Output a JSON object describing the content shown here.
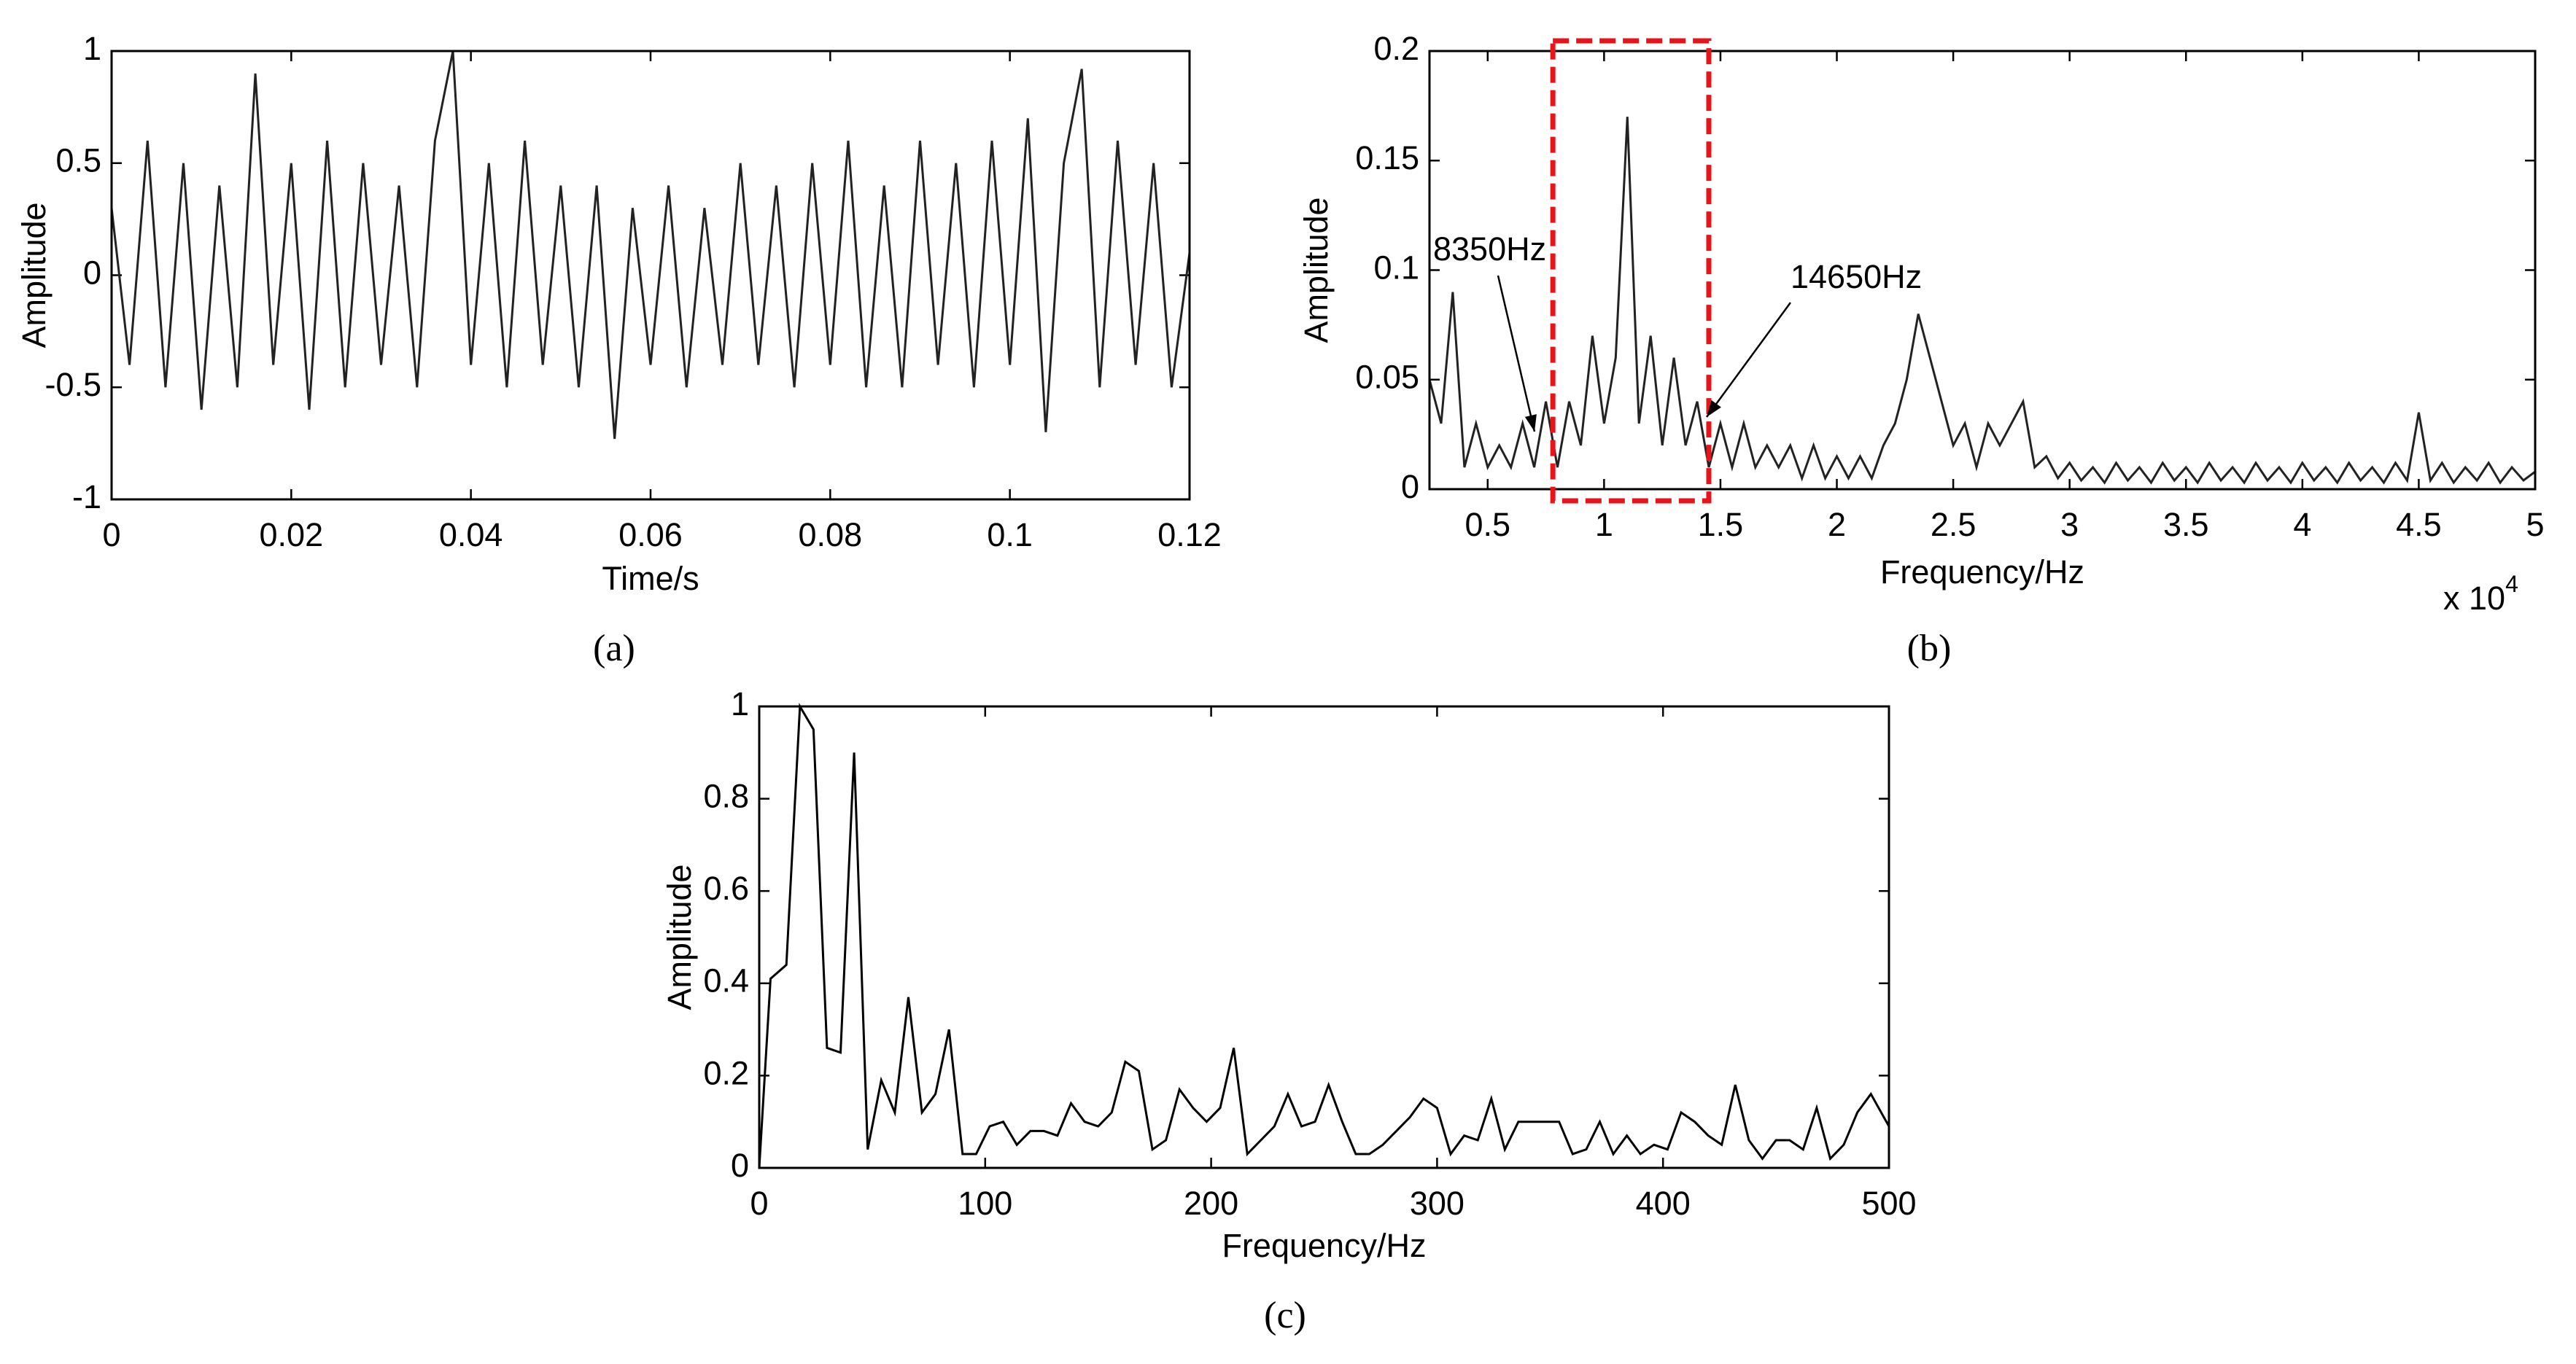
{
  "chart_data": [
    {
      "type": "line",
      "panel_label": "(a)",
      "xlabel": "Time/s",
      "ylabel": "Amplitude",
      "xlim": [
        0,
        0.12
      ],
      "xticks": [
        0,
        0.02,
        0.04,
        0.06,
        0.08,
        0.1,
        0.12
      ],
      "ylim": [
        -1,
        1
      ],
      "yticks": [
        -1,
        -0.5,
        0,
        0.5,
        1
      ],
      "grid": false,
      "x": [
        0,
        0.002,
        0.004,
        0.006,
        0.008,
        0.01,
        0.012,
        0.014,
        0.016,
        0.018,
        0.02,
        0.022,
        0.024,
        0.026,
        0.028,
        0.03,
        0.032,
        0.034,
        0.036,
        0.038,
        0.04,
        0.042,
        0.044,
        0.046,
        0.048,
        0.05,
        0.052,
        0.054,
        0.056,
        0.058,
        0.06,
        0.062,
        0.064,
        0.066,
        0.068,
        0.07,
        0.072,
        0.074,
        0.076,
        0.078,
        0.08,
        0.082,
        0.084,
        0.086,
        0.088,
        0.09,
        0.092,
        0.094,
        0.096,
        0.098,
        0.1,
        0.102,
        0.104,
        0.106,
        0.108,
        0.11,
        0.112,
        0.114,
        0.116,
        0.118,
        0.12
      ],
      "series": [
        {
          "color": "#222222",
          "values": [
            0.3,
            -0.4,
            0.6,
            -0.5,
            0.5,
            -0.6,
            0.4,
            -0.5,
            0.9,
            -0.4,
            0.5,
            -0.6,
            0.6,
            -0.5,
            0.5,
            -0.4,
            0.4,
            -0.5,
            0.6,
            1.0,
            -0.4,
            0.5,
            -0.5,
            0.6,
            -0.4,
            0.4,
            -0.5,
            0.4,
            -0.73,
            0.3,
            -0.4,
            0.4,
            -0.5,
            0.3,
            -0.4,
            0.5,
            -0.4,
            0.4,
            -0.5,
            0.5,
            -0.4,
            0.6,
            -0.5,
            0.4,
            -0.5,
            0.6,
            -0.4,
            0.5,
            -0.5,
            0.6,
            -0.4,
            0.7,
            -0.7,
            0.5,
            0.92,
            -0.5,
            0.6,
            -0.4,
            0.5,
            -0.5,
            0.1
          ]
        }
      ]
    },
    {
      "type": "line",
      "panel_label": "(b)",
      "xlabel": "Frequency/Hz",
      "ylabel": "Amplitude",
      "x_multiplier": "x 10",
      "x_exponent": "4",
      "xlim": [
        2500,
        50000
      ],
      "xticks": [
        {
          "value": 5000,
          "label": "0.5"
        },
        {
          "value": 10000,
          "label": "1"
        },
        {
          "value": 15000,
          "label": "1.5"
        },
        {
          "value": 20000,
          "label": "2"
        },
        {
          "value": 25000,
          "label": "2.5"
        },
        {
          "value": 30000,
          "label": "3"
        },
        {
          "value": 35000,
          "label": "3.5"
        },
        {
          "value": 40000,
          "label": "4"
        },
        {
          "value": 45000,
          "label": "4.5"
        },
        {
          "value": 50000,
          "label": "5"
        }
      ],
      "ylim": [
        0,
        0.2
      ],
      "yticks": [
        0,
        0.05,
        0.1,
        0.15,
        0.2
      ],
      "grid": false,
      "highlight": {
        "x": [
          7800,
          14500
        ],
        "color": "#e8141c"
      },
      "annotations": [
        "8350Hz",
        "14650Hz"
      ],
      "x": [
        2500,
        3000,
        3500,
        4000,
        4500,
        5000,
        5500,
        6000,
        6500,
        7000,
        7500,
        8000,
        8500,
        9000,
        9500,
        10000,
        10500,
        11000,
        11500,
        12000,
        12500,
        13000,
        13500,
        14000,
        14500,
        15000,
        15500,
        16000,
        16500,
        17000,
        17500,
        18000,
        18500,
        19000,
        19500,
        20000,
        20500,
        21000,
        21500,
        22000,
        22500,
        23000,
        23500,
        24000,
        24500,
        25000,
        25500,
        26000,
        26500,
        27000,
        27500,
        28000,
        28500,
        29000,
        29500,
        30000,
        30500,
        31000,
        31500,
        32000,
        32500,
        33000,
        33500,
        34000,
        34500,
        35000,
        35500,
        36000,
        36500,
        37000,
        37500,
        38000,
        38500,
        39000,
        39500,
        40000,
        40500,
        41000,
        41500,
        42000,
        42500,
        43000,
        43500,
        44000,
        44500,
        45000,
        45500,
        46000,
        46500,
        47000,
        47500,
        48000,
        48500,
        49000,
        49500,
        50000
      ],
      "series": [
        {
          "color": "#222222",
          "values": [
            0.05,
            0.03,
            0.09,
            0.01,
            0.03,
            0.01,
            0.02,
            0.01,
            0.03,
            0.01,
            0.04,
            0.01,
            0.04,
            0.02,
            0.07,
            0.03,
            0.06,
            0.17,
            0.03,
            0.07,
            0.02,
            0.06,
            0.02,
            0.04,
            0.01,
            0.03,
            0.01,
            0.03,
            0.01,
            0.02,
            0.01,
            0.02,
            0.005,
            0.02,
            0.005,
            0.015,
            0.005,
            0.015,
            0.005,
            0.02,
            0.03,
            0.05,
            0.08,
            0.06,
            0.04,
            0.02,
            0.03,
            0.01,
            0.03,
            0.02,
            0.03,
            0.04,
            0.01,
            0.015,
            0.005,
            0.012,
            0.004,
            0.01,
            0.003,
            0.012,
            0.004,
            0.01,
            0.003,
            0.012,
            0.004,
            0.01,
            0.003,
            0.012,
            0.004,
            0.01,
            0.003,
            0.012,
            0.004,
            0.01,
            0.003,
            0.012,
            0.004,
            0.01,
            0.003,
            0.012,
            0.004,
            0.01,
            0.003,
            0.012,
            0.004,
            0.035,
            0.004,
            0.012,
            0.003,
            0.01,
            0.004,
            0.012,
            0.003,
            0.01,
            0.004,
            0.008
          ]
        }
      ]
    },
    {
      "type": "line",
      "panel_label": "(c)",
      "xlabel": "Frequency/Hz",
      "ylabel": "Amplitude",
      "xlim": [
        0,
        500
      ],
      "xticks": [
        0,
        100,
        200,
        300,
        400,
        500
      ],
      "ylim": [
        0,
        1
      ],
      "yticks": [
        0,
        0.2,
        0.4,
        0.6,
        0.8,
        1
      ],
      "grid": false,
      "x": [
        0,
        5,
        12,
        18,
        24,
        30,
        36,
        42,
        48,
        54,
        60,
        66,
        72,
        78,
        84,
        90,
        96,
        102,
        108,
        114,
        120,
        126,
        132,
        138,
        144,
        150,
        156,
        162,
        168,
        174,
        180,
        186,
        192,
        198,
        204,
        210,
        216,
        222,
        228,
        234,
        240,
        246,
        252,
        258,
        264,
        270,
        276,
        282,
        288,
        294,
        300,
        306,
        312,
        318,
        324,
        330,
        336,
        342,
        348,
        354,
        360,
        366,
        372,
        378,
        384,
        390,
        396,
        402,
        408,
        414,
        420,
        426,
        432,
        438,
        444,
        450,
        456,
        462,
        468,
        474,
        480,
        486,
        492,
        500
      ],
      "series": [
        {
          "color": "#000000",
          "values": [
            0,
            0.41,
            0.44,
            1.0,
            0.95,
            0.26,
            0.25,
            0.9,
            0.04,
            0.19,
            0.12,
            0.37,
            0.12,
            0.16,
            0.3,
            0.03,
            0.03,
            0.09,
            0.1,
            0.05,
            0.08,
            0.08,
            0.07,
            0.14,
            0.1,
            0.09,
            0.12,
            0.23,
            0.21,
            0.04,
            0.06,
            0.17,
            0.13,
            0.1,
            0.13,
            0.26,
            0.03,
            0.06,
            0.09,
            0.16,
            0.09,
            0.1,
            0.18,
            0.1,
            0.03,
            0.03,
            0.05,
            0.08,
            0.11,
            0.15,
            0.13,
            0.03,
            0.07,
            0.06,
            0.15,
            0.04,
            0.1,
            0.1,
            0.1,
            0.1,
            0.03,
            0.04,
            0.1,
            0.03,
            0.07,
            0.03,
            0.05,
            0.04,
            0.12,
            0.1,
            0.07,
            0.05,
            0.18,
            0.06,
            0.02,
            0.06,
            0.06,
            0.04,
            0.13,
            0.02,
            0.05,
            0.12,
            0.16,
            0.09
          ]
        }
      ]
    }
  ]
}
